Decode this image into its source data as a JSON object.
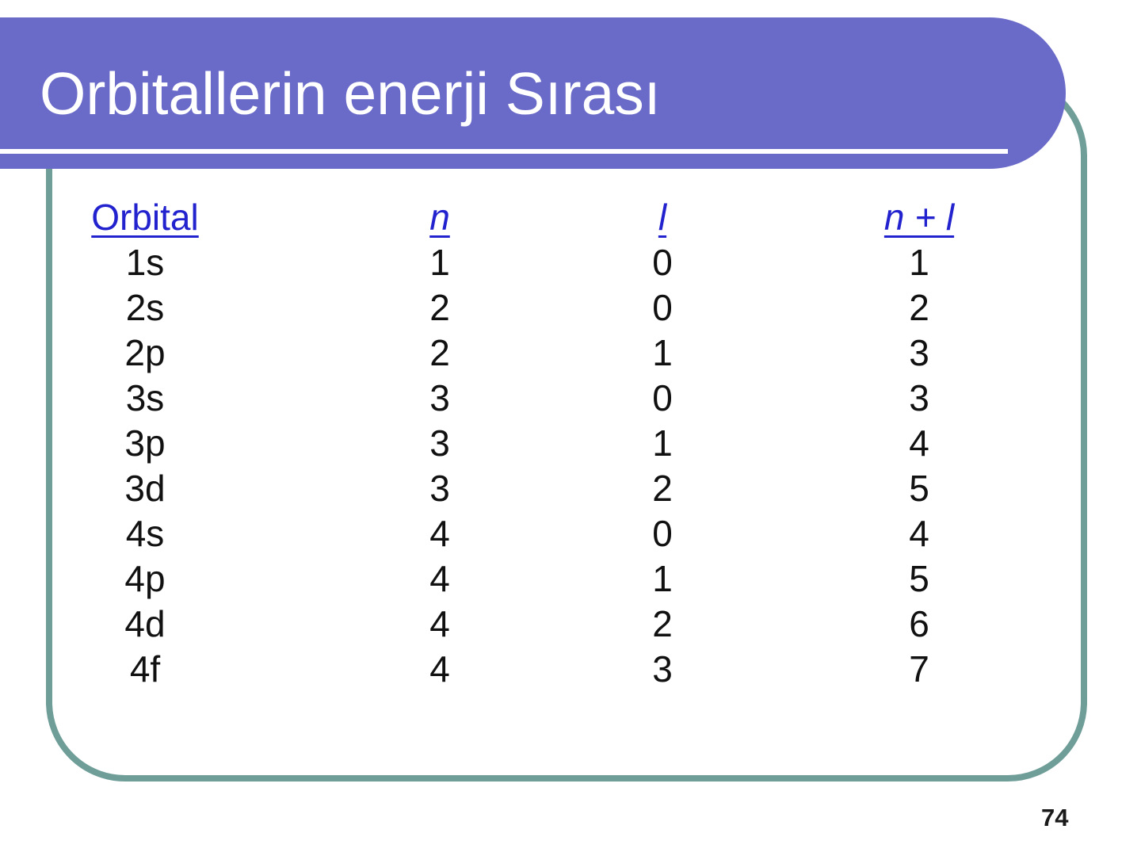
{
  "slide": {
    "title": "Orbitallerin enerji Sırası",
    "page_number": "74"
  },
  "table": {
    "headers": [
      {
        "label": "Orbital",
        "italic": false
      },
      {
        "label": "n",
        "italic": true
      },
      {
        "label": "l",
        "italic": true
      },
      {
        "label": "n + l",
        "italic": true
      }
    ],
    "rows": [
      [
        "1s",
        "1",
        "0",
        "1"
      ],
      [
        "2s",
        "2",
        "0",
        "2"
      ],
      [
        "2p",
        "2",
        "1",
        "3"
      ],
      [
        "3s",
        "3",
        "0",
        "3"
      ],
      [
        "3p",
        "3",
        "1",
        "4"
      ],
      [
        "3d",
        "3",
        "2",
        "5"
      ],
      [
        "4s",
        "4",
        "0",
        "4"
      ],
      [
        "4p",
        "4",
        "1",
        "5"
      ],
      [
        "4d",
        "4",
        "2",
        "6"
      ],
      [
        "4f",
        "4",
        "3",
        "7"
      ]
    ]
  },
  "colors": {
    "banner": "#6A6AC9",
    "border": "#6F9E99",
    "header_text": "#2222CE",
    "body_text": "#111111"
  }
}
